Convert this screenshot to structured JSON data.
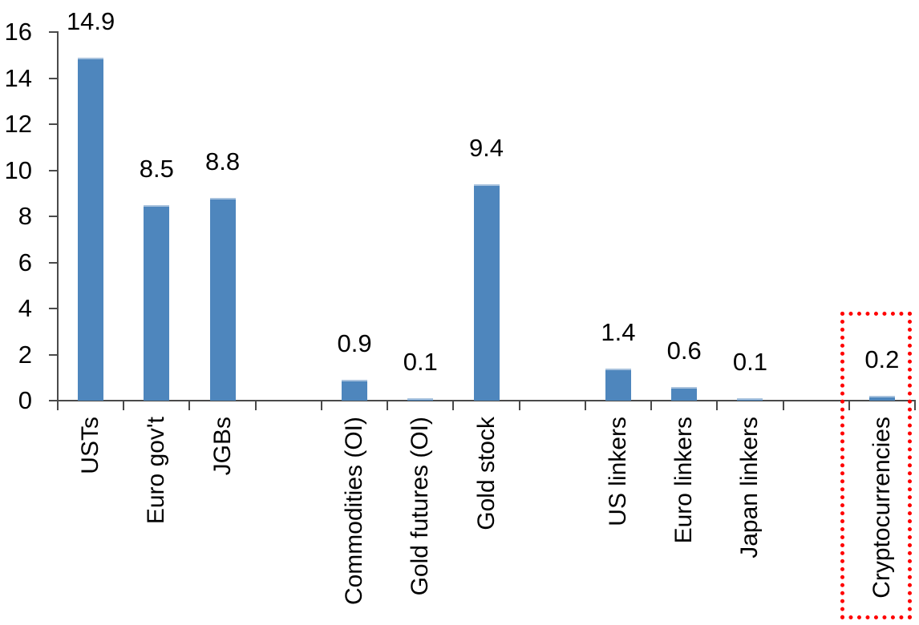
{
  "chart_data": {
    "type": "bar",
    "title": "",
    "xlabel": "",
    "ylabel": "",
    "categories": [
      "USTs",
      "Euro gov't",
      "JGBs",
      "Commodities (OI)",
      "Gold futures (OI)",
      "Gold stock",
      "US linkers",
      "Euro linkers",
      "Japan linkers",
      "Cryptocurrencies"
    ],
    "values": [
      14.9,
      8.5,
      8.8,
      0.9,
      0.1,
      9.4,
      1.4,
      0.6,
      0.1,
      0.2
    ],
    "value_labels": [
      "14.9",
      "8.5",
      "8.8",
      "0.9",
      "0.1",
      "9.4",
      "1.4",
      "0.6",
      "0.1",
      "0.2"
    ],
    "slots": [
      1,
      2,
      3,
      5,
      6,
      7,
      9,
      10,
      11,
      13
    ],
    "n_slots": 13,
    "group_gaps_after": [
      "JGBs",
      "Gold stock",
      "Japan linkers"
    ],
    "ylim": [
      0,
      16
    ],
    "yticks": [
      0,
      2,
      4,
      6,
      8,
      10,
      12,
      14,
      16
    ],
    "grid": false,
    "legend": null,
    "colors": {
      "bar_fill": "#4E86BD",
      "bar_top_edge": "#A8C2DD",
      "axis": "#4a4a4a",
      "text": "#000000",
      "highlight_border": "#FF0000"
    },
    "highlight": {
      "category": "Cryptocurrencies",
      "value_label": "0.2",
      "style": "red-dotted-box"
    }
  }
}
